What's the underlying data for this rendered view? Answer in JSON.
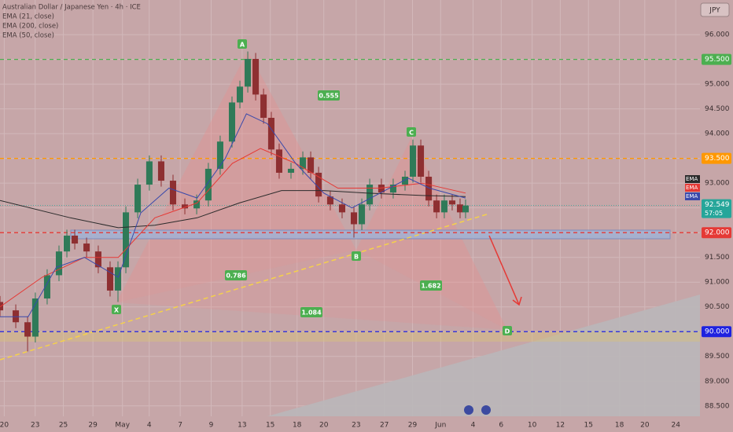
{
  "header": {
    "title": "Australian Dollar / Japanese Yen · 4h · ICE",
    "indicators": [
      "EMA (21, close)",
      "EMA (200, close)",
      "EMA (50, close)"
    ],
    "currency": "JPY"
  },
  "pattern": {
    "points": [
      "X",
      "A",
      "B",
      "C",
      "D"
    ],
    "ratios": [
      "0.555",
      "0.786",
      "1.682",
      "1.084"
    ]
  },
  "chart_data": {
    "type": "candlestick",
    "up_color": "#2f7a58",
    "down_color": "#8e2f31",
    "grid": true,
    "ylim": [
      88.29,
      96.7
    ],
    "yticks": [
      {
        "value": 96,
        "label": "96.000"
      },
      {
        "value": 95.5,
        "label": "95.500"
      },
      {
        "value": 95,
        "label": "95.000"
      },
      {
        "value": 94.5,
        "label": "94.500"
      },
      {
        "value": 94,
        "label": "94.000"
      },
      {
        "value": 93.5,
        "label": "93.500"
      },
      {
        "value": 93,
        "label": "93.000"
      },
      {
        "value": 92.5,
        "label": "92.500"
      },
      {
        "value": 92,
        "label": "92.000"
      },
      {
        "value": 91.5,
        "label": "91.500"
      },
      {
        "value": 91,
        "label": "91.000"
      },
      {
        "value": 90.5,
        "label": "90.500"
      },
      {
        "value": 90,
        "label": "90.000"
      },
      {
        "value": 89.5,
        "label": "89.500"
      },
      {
        "value": 89,
        "label": "89.000"
      },
      {
        "value": 88.5,
        "label": "88.500"
      }
    ],
    "xlim": [
      0,
      49.72
    ],
    "xticks": [
      {
        "value": 0.3,
        "label": "20"
      },
      {
        "value": 2.5,
        "label": "23"
      },
      {
        "value": 4.5,
        "label": "25"
      },
      {
        "value": 6.6,
        "label": "29"
      },
      {
        "value": 8.7,
        "label": "May"
      },
      {
        "value": 10.6,
        "label": "4"
      },
      {
        "value": 12.8,
        "label": "7"
      },
      {
        "value": 15,
        "label": "9"
      },
      {
        "value": 17.2,
        "label": "13"
      },
      {
        "value": 19.2,
        "label": "15"
      },
      {
        "value": 21.1,
        "label": "18"
      },
      {
        "value": 23,
        "label": "20"
      },
      {
        "value": 25.3,
        "label": "23"
      },
      {
        "value": 27.3,
        "label": "27"
      },
      {
        "value": 29.3,
        "label": "29"
      },
      {
        "value": 31.3,
        "label": "Jun"
      },
      {
        "value": 33.6,
        "label": "4"
      },
      {
        "value": 35.6,
        "label": "6"
      },
      {
        "value": 37.8,
        "label": "10"
      },
      {
        "value": 39.8,
        "label": "12"
      },
      {
        "value": 41.8,
        "label": "15"
      },
      {
        "value": 44,
        "label": "18"
      },
      {
        "value": 45.8,
        "label": "20"
      },
      {
        "value": 48,
        "label": "24"
      }
    ],
    "x": [
      0,
      1.12,
      1.96,
      2.51,
      3.35,
      4.19,
      4.75,
      5.31,
      6.15,
      6.98,
      7.82,
      8.38,
      8.94,
      9.78,
      10.61,
      11.45,
      12.29,
      13.13,
      13.97,
      14.8,
      15.64,
      16.48,
      17.04,
      17.6,
      18.16,
      18.72,
      19.27,
      19.83,
      20.67,
      21.51,
      22.07,
      22.63,
      23.46,
      24.3,
      25.14,
      25.7,
      26.26,
      27.09,
      27.93,
      28.77,
      29.33,
      29.89,
      30.45,
      31.01,
      31.56,
      32.12,
      32.68,
      33.07
    ],
    "open": [
      90.6,
      90.43,
      90.19,
      89.9,
      90.67,
      91.14,
      91.62,
      91.94,
      91.78,
      91.62,
      91.3,
      90.83,
      91.3,
      92.41,
      92.97,
      93.44,
      93.05,
      92.57,
      92.49,
      92.65,
      93.29,
      93.84,
      94.63,
      94.95,
      95.51,
      94.79,
      94.32,
      93.68,
      93.21,
      93.29,
      93.52,
      93.21,
      92.73,
      92.57,
      92.41,
      92.17,
      92.57,
      92.97,
      92.81,
      92.97,
      93.13,
      93.76,
      93.13,
      92.65,
      92.41,
      92.65,
      92.57,
      92.41
    ],
    "high": [
      90.72,
      90.55,
      90.31,
      90.79,
      91.26,
      91.74,
      92.06,
      92.06,
      91.9,
      91.74,
      91.42,
      91.42,
      92.53,
      93.09,
      93.56,
      93.56,
      93.17,
      92.69,
      92.77,
      93.41,
      93.96,
      94.75,
      95.07,
      95.66,
      95.63,
      94.91,
      94.44,
      93.8,
      93.41,
      93.64,
      93.64,
      93.33,
      92.85,
      92.69,
      92.53,
      92.69,
      93.09,
      93.09,
      93.09,
      93.25,
      93.88,
      93.88,
      93.25,
      92.77,
      92.77,
      92.77,
      92.69,
      92.67
    ],
    "low": [
      90.31,
      90.07,
      89.6,
      89.78,
      90.55,
      91.02,
      91.5,
      91.66,
      91.5,
      91.18,
      90.71,
      90.6,
      91.18,
      92.29,
      92.85,
      92.93,
      92.45,
      92.37,
      92.37,
      92.53,
      93.17,
      93.72,
      94.51,
      94.83,
      94.67,
      94.2,
      93.56,
      93.09,
      93.09,
      93.17,
      93.09,
      92.61,
      92.45,
      92.29,
      91.9,
      92.05,
      92.45,
      92.69,
      92.69,
      92.85,
      93.01,
      93.01,
      92.53,
      92.29,
      92.29,
      92.45,
      92.29,
      92.29
    ],
    "close": [
      90.43,
      90.19,
      89.9,
      90.67,
      91.14,
      91.62,
      91.94,
      91.78,
      91.62,
      91.3,
      90.83,
      91.3,
      92.41,
      92.97,
      93.44,
      93.05,
      92.57,
      92.49,
      92.65,
      93.29,
      93.84,
      94.63,
      94.95,
      95.51,
      94.79,
      94.32,
      93.68,
      93.21,
      93.29,
      93.52,
      93.21,
      92.73,
      92.57,
      92.41,
      92.17,
      92.57,
      92.97,
      92.81,
      92.97,
      93.13,
      93.76,
      93.13,
      92.65,
      92.41,
      92.65,
      92.57,
      92.41,
      92.549
    ],
    "series": [
      {
        "name": "EMA",
        "color": "#2b2b2b",
        "x": [
          0,
          5,
          8.4,
          11,
          14,
          17,
          20,
          23,
          26,
          30,
          33.07
        ],
        "values": [
          92.65,
          92.3,
          92.1,
          92.15,
          92.3,
          92.6,
          92.85,
          92.85,
          92.8,
          92.75,
          92.73
        ]
      },
      {
        "name": "EMA",
        "color": "#e53935",
        "x": [
          0,
          3,
          6,
          8.4,
          11,
          14,
          16.5,
          18.5,
          21,
          24,
          27,
          30,
          33.07
        ],
        "values": [
          90.5,
          91.1,
          91.5,
          91.5,
          92.3,
          92.6,
          93.4,
          93.7,
          93.4,
          92.9,
          92.9,
          93.0,
          92.8
        ]
      },
      {
        "name": "EMA",
        "color": "#3949ab",
        "x": [
          0,
          2,
          4,
          6,
          8.4,
          10,
          12,
          14,
          16,
          17.5,
          19,
          21,
          23,
          25,
          27,
          29,
          30.5,
          33.07
        ],
        "values": [
          90.3,
          90.3,
          91.3,
          91.5,
          91.1,
          92.4,
          92.9,
          92.7,
          93.5,
          94.4,
          94.2,
          93.4,
          92.8,
          92.5,
          92.8,
          93.1,
          92.9,
          92.7
        ]
      }
    ],
    "levels": [
      {
        "value": 95.5,
        "label": "95.500",
        "color": "#4caf50"
      },
      {
        "value": 93.5,
        "label": "93.500",
        "color": "#ff9800"
      },
      {
        "value": 92,
        "label": "92.000",
        "color": "#e53935"
      },
      {
        "value": 90,
        "label": "90.000",
        "color": "#1e22e0"
      }
    ],
    "last_price": {
      "value": 92.549,
      "countdown": "57:05",
      "color": "#26a69a"
    }
  }
}
